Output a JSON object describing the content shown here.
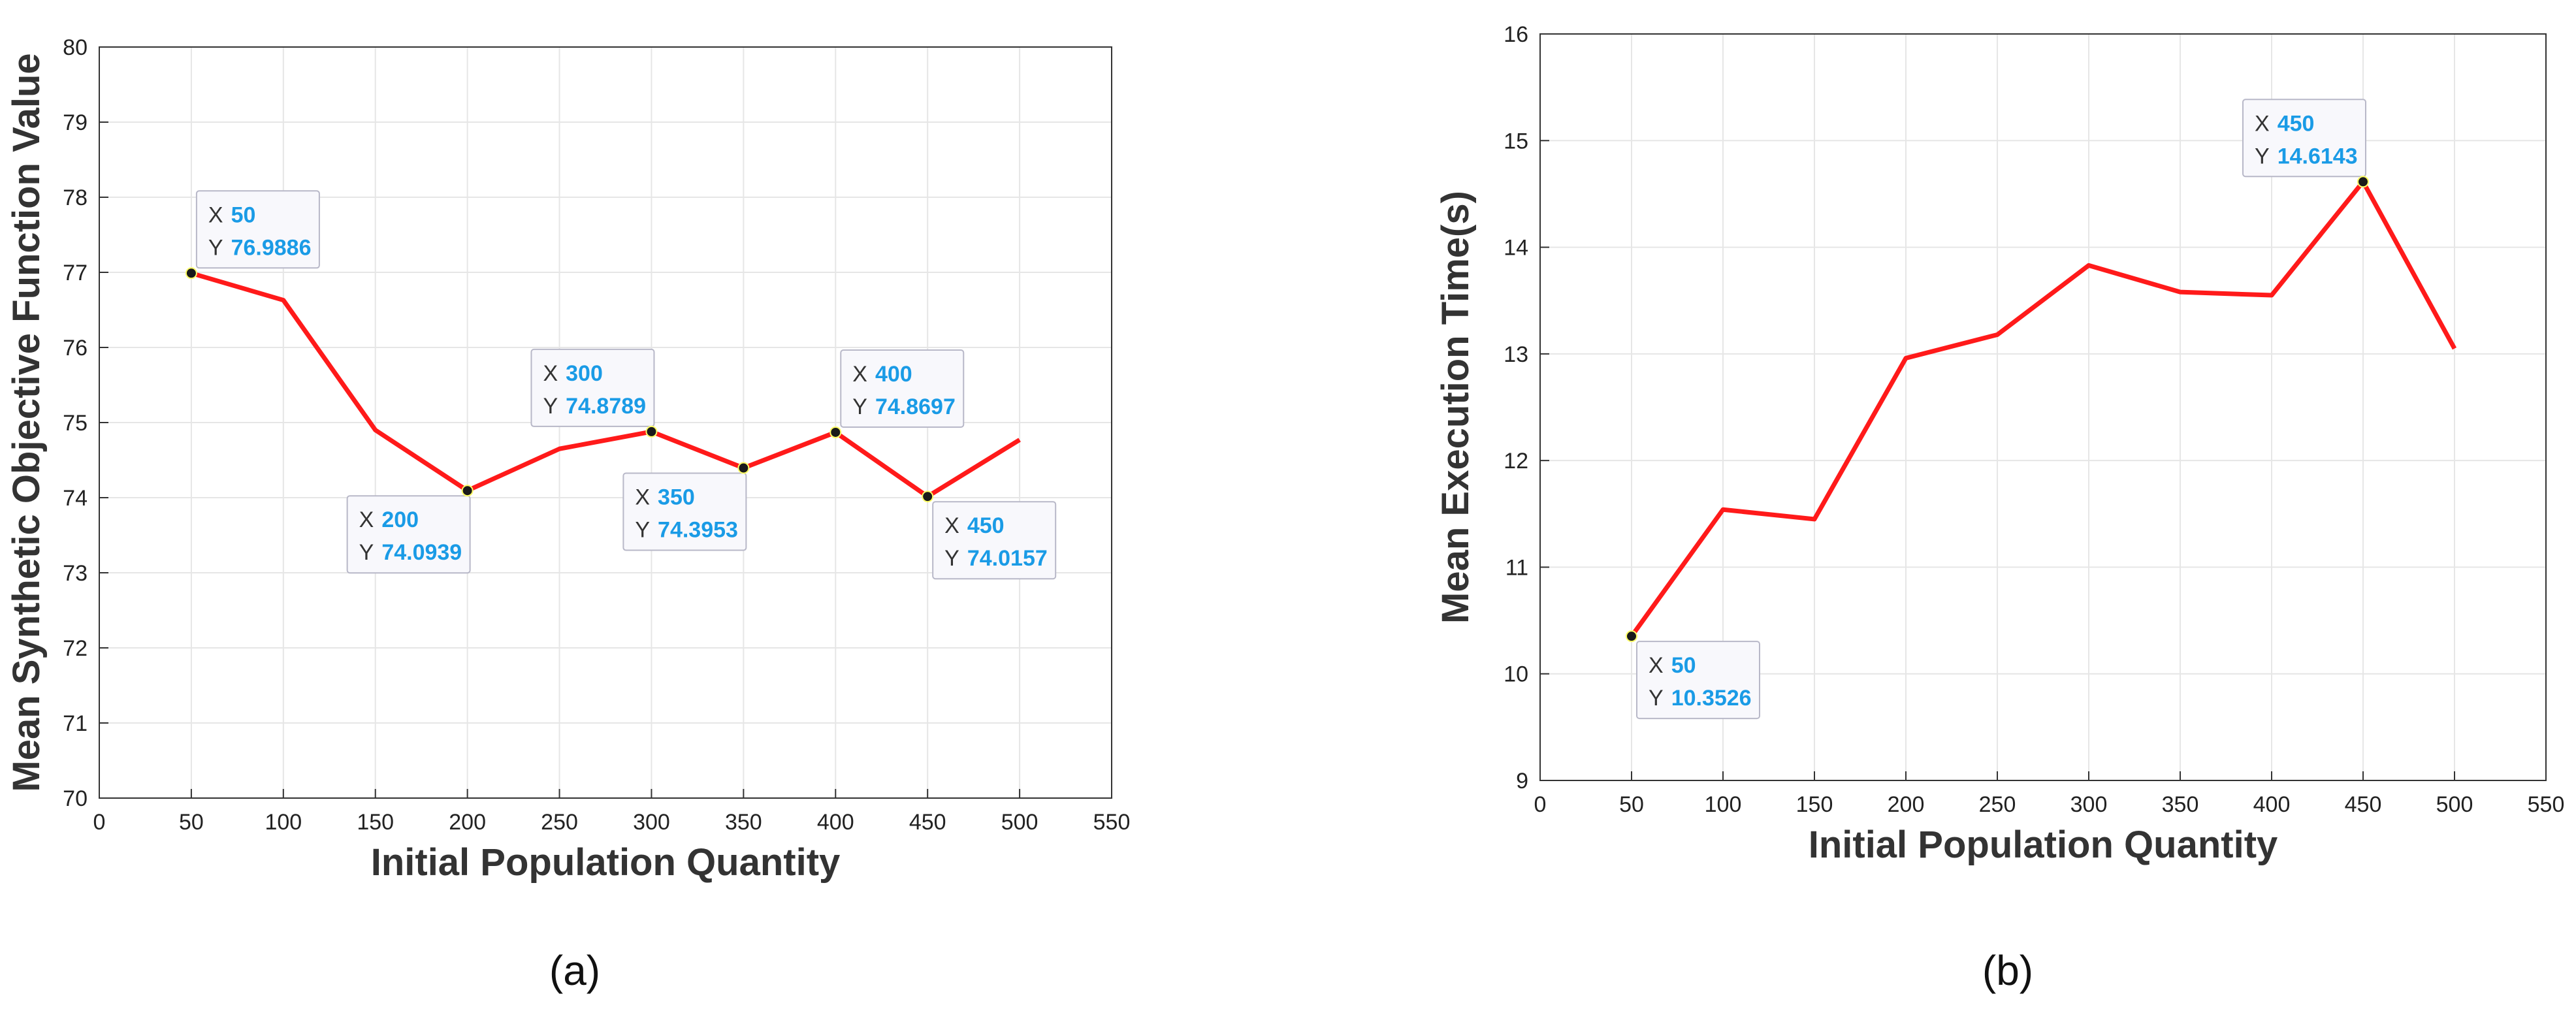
{
  "chart_data": [
    {
      "type": "line",
      "panel_label": "(a)",
      "xlabel": "Initial Population Quantity",
      "ylabel": "Mean Synthetic Objective Function Value",
      "xlim": [
        0,
        550
      ],
      "ylim": [
        70,
        80
      ],
      "xticks": [
        "0",
        "50",
        "100",
        "150",
        "200",
        "250",
        "300",
        "350",
        "400",
        "450",
        "500",
        "550"
      ],
      "yticks": [
        "70",
        "71",
        "72",
        "73",
        "74",
        "75",
        "76",
        "77",
        "78",
        "79",
        "80"
      ],
      "grid": true,
      "line_color": "#ff1a1a",
      "series": [
        {
          "x": [
            50,
            100,
            150,
            200,
            250,
            300,
            350,
            400,
            450,
            500
          ],
          "values": [
            76.9886,
            76.63,
            74.9,
            74.0939,
            74.65,
            74.8789,
            74.3953,
            74.8697,
            74.0157,
            74.77
          ]
        }
      ],
      "datatips": [
        {
          "x": "50",
          "y": "76.9886",
          "xv": 50,
          "yv": 76.9886,
          "place": "above-right"
        },
        {
          "x": "200",
          "y": "74.0939",
          "xv": 200,
          "yv": 74.0939,
          "place": "below-left"
        },
        {
          "x": "300",
          "y": "74.8789",
          "xv": 300,
          "yv": 74.8789,
          "place": "above-left"
        },
        {
          "x": "350",
          "y": "74.3953",
          "xv": 350,
          "yv": 74.3953,
          "place": "below-left"
        },
        {
          "x": "400",
          "y": "74.8697",
          "xv": 400,
          "yv": 74.8697,
          "place": "above-right"
        },
        {
          "x": "450",
          "y": "74.0157",
          "xv": 450,
          "yv": 74.0157,
          "place": "below-right"
        }
      ]
    },
    {
      "type": "line",
      "panel_label": "(b)",
      "xlabel": "Initial Population Quantity",
      "ylabel": "Mean Execution Time(s)",
      "xlim": [
        0,
        550
      ],
      "ylim": [
        9,
        16
      ],
      "xticks": [
        "0",
        "50",
        "100",
        "150",
        "200",
        "250",
        "300",
        "350",
        "400",
        "450",
        "500",
        "550"
      ],
      "yticks": [
        "9",
        "10",
        "11",
        "12",
        "13",
        "14",
        "15",
        "16"
      ],
      "grid": true,
      "line_color": "#ff1a1a",
      "series": [
        {
          "x": [
            50,
            100,
            150,
            200,
            250,
            300,
            350,
            400,
            450,
            500
          ],
          "values": [
            10.3526,
            11.54,
            11.45,
            12.96,
            13.18,
            13.83,
            13.58,
            13.55,
            14.6143,
            13.05
          ]
        }
      ],
      "datatips": [
        {
          "x": "50",
          "y": "10.3526",
          "xv": 50,
          "yv": 10.3526,
          "place": "below-right"
        },
        {
          "x": "450",
          "y": "14.6143",
          "xv": 450,
          "yv": 14.6143,
          "place": "above-left"
        }
      ]
    }
  ],
  "datatip_labels": {
    "x_prefix": "X",
    "y_prefix": "Y"
  },
  "colors": {
    "datatip_value": "#1a9be6",
    "datatip_prefix": "#333333",
    "axis": "#333333",
    "grid": "#e6e6e6"
  }
}
